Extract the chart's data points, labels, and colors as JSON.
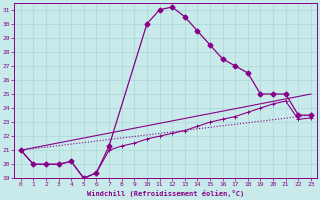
{
  "xlabel": "Windchill (Refroidissement éolien,°C)",
  "x_ticks": [
    0,
    1,
    2,
    3,
    4,
    5,
    6,
    7,
    8,
    9,
    10,
    11,
    12,
    13,
    14,
    15,
    16,
    17,
    18,
    19,
    20,
    21,
    22,
    23
  ],
  "ylim": [
    19,
    31.5
  ],
  "xlim": [
    -0.5,
    23.5
  ],
  "yticks": [
    19,
    20,
    21,
    22,
    23,
    24,
    25,
    26,
    27,
    28,
    29,
    30,
    31
  ],
  "background_color": "#c8eaea",
  "grid_color": "#aad8d8",
  "line_color": "#880088",
  "curve1_x": [
    0,
    1,
    2,
    3,
    4,
    5,
    6,
    7,
    10,
    11,
    12,
    13,
    14,
    15,
    16,
    17,
    18,
    19,
    20,
    21,
    22,
    23
  ],
  "curve1_y": [
    21,
    20,
    20,
    20,
    20.2,
    19,
    19.4,
    21.3,
    30.0,
    31.0,
    31.2,
    30.5,
    29.5,
    28.5,
    27.5,
    27.0,
    26.5,
    25.0,
    25.0,
    25.0,
    23.5,
    23.5
  ],
  "curve2_x": [
    0,
    1,
    2,
    3,
    4,
    5,
    6,
    7,
    8,
    9,
    10,
    11,
    12,
    13,
    14,
    15,
    16,
    17,
    18,
    19,
    20,
    21,
    22,
    23
  ],
  "curve2_y": [
    21,
    20,
    20,
    20,
    20.2,
    19.0,
    19.4,
    21.0,
    21.3,
    21.5,
    21.8,
    22.0,
    22.2,
    22.4,
    22.7,
    23.0,
    23.2,
    23.4,
    23.7,
    24.0,
    24.3,
    24.5,
    23.2,
    23.3
  ],
  "line3_x": [
    0,
    23
  ],
  "line3_y": [
    21,
    25.0
  ],
  "line4_x": [
    0,
    23
  ],
  "line4_y": [
    21,
    23.5
  ]
}
